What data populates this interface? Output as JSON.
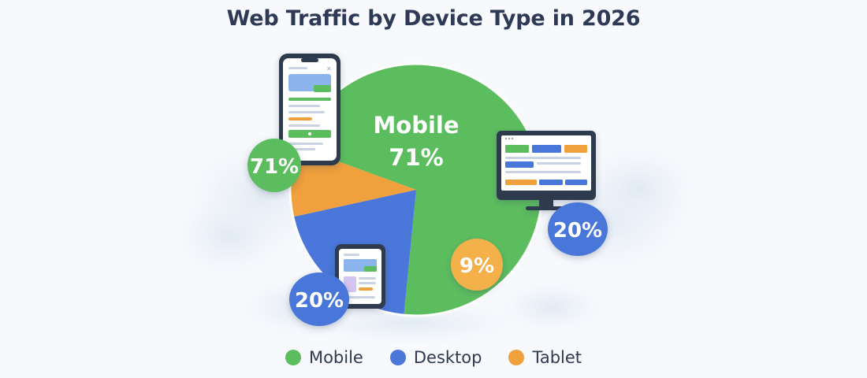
{
  "chart_data": {
    "type": "pie",
    "title": "Web Traffic by Device Type in 2026",
    "slices": [
      {
        "label": "Mobile",
        "value": 71,
        "display": "71%",
        "color": "#5cbd5e"
      },
      {
        "label": "Desktop",
        "value": 20,
        "display": "20%",
        "color": "#4a77d9"
      },
      {
        "label": "Tablet",
        "value": 9,
        "display": "9%",
        "color": "#f0a03c"
      }
    ],
    "center_label": {
      "name": "Mobile",
      "value": "71%"
    },
    "legend_position": "bottom"
  },
  "colors": {
    "mobile": "#5cbd5e",
    "desktop": "#4a77d9",
    "tablet": "#f0a03c",
    "title_text": "#2e3a55",
    "device_frame": "#2f3a4e"
  },
  "icons": [
    "smartphone-icon",
    "desktop-monitor-icon",
    "tablet-icon"
  ]
}
